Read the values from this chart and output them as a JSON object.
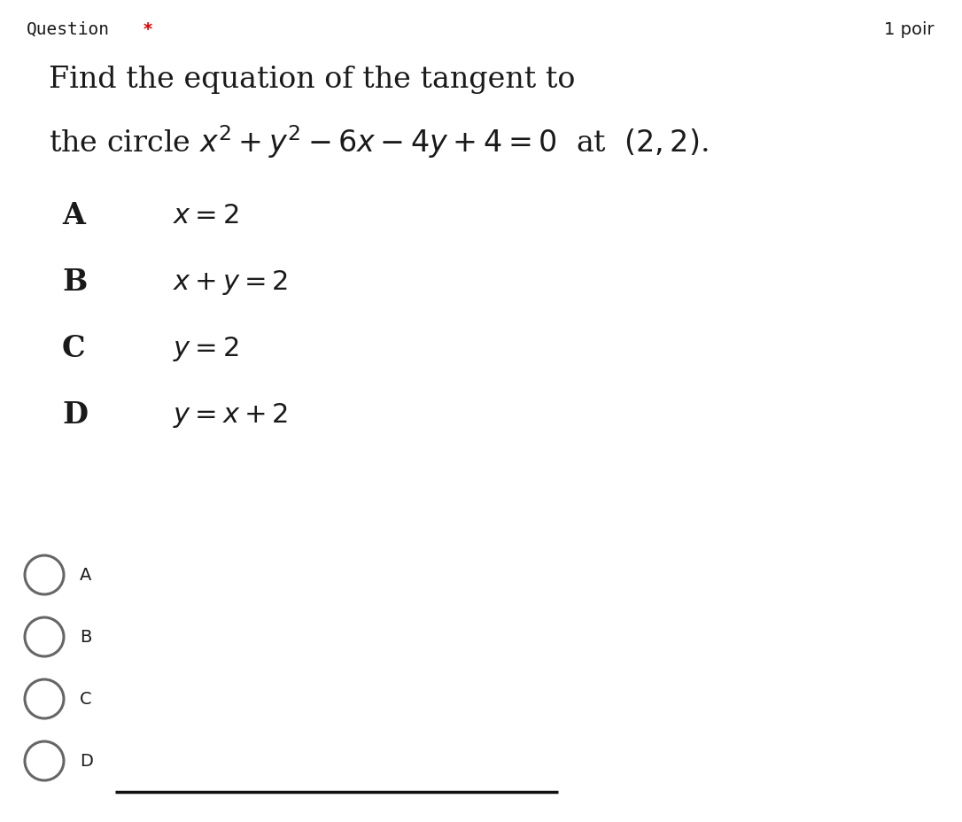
{
  "bg_color": "#ffffff",
  "question_label": "Question",
  "question_star": "*",
  "question_star_color": "#dd0000",
  "points_label": "1 poir",
  "question_text_line1": "Find the equation of the tangent to",
  "question_text_line2": "the circle $x^2 + y^2 - 6x - 4y + 4 = 0$  at  $(2, 2)$.",
  "options": [
    {
      "label": "A",
      "text": "$x = 2$"
    },
    {
      "label": "B",
      "text": "$x + y = 2$"
    },
    {
      "label": "C",
      "text": "$y = 2$"
    },
    {
      "label": "D",
      "text": "$y = x + 2$"
    }
  ],
  "radio_labels": [
    "A",
    "B",
    "C",
    "D"
  ],
  "font_color": "#1a1a1a",
  "label_font_size": 24,
  "option_font_size": 22,
  "header_font_size": 14,
  "body_font_size": 24,
  "radio_font_size": 14,
  "bottom_line_color": "#111111"
}
